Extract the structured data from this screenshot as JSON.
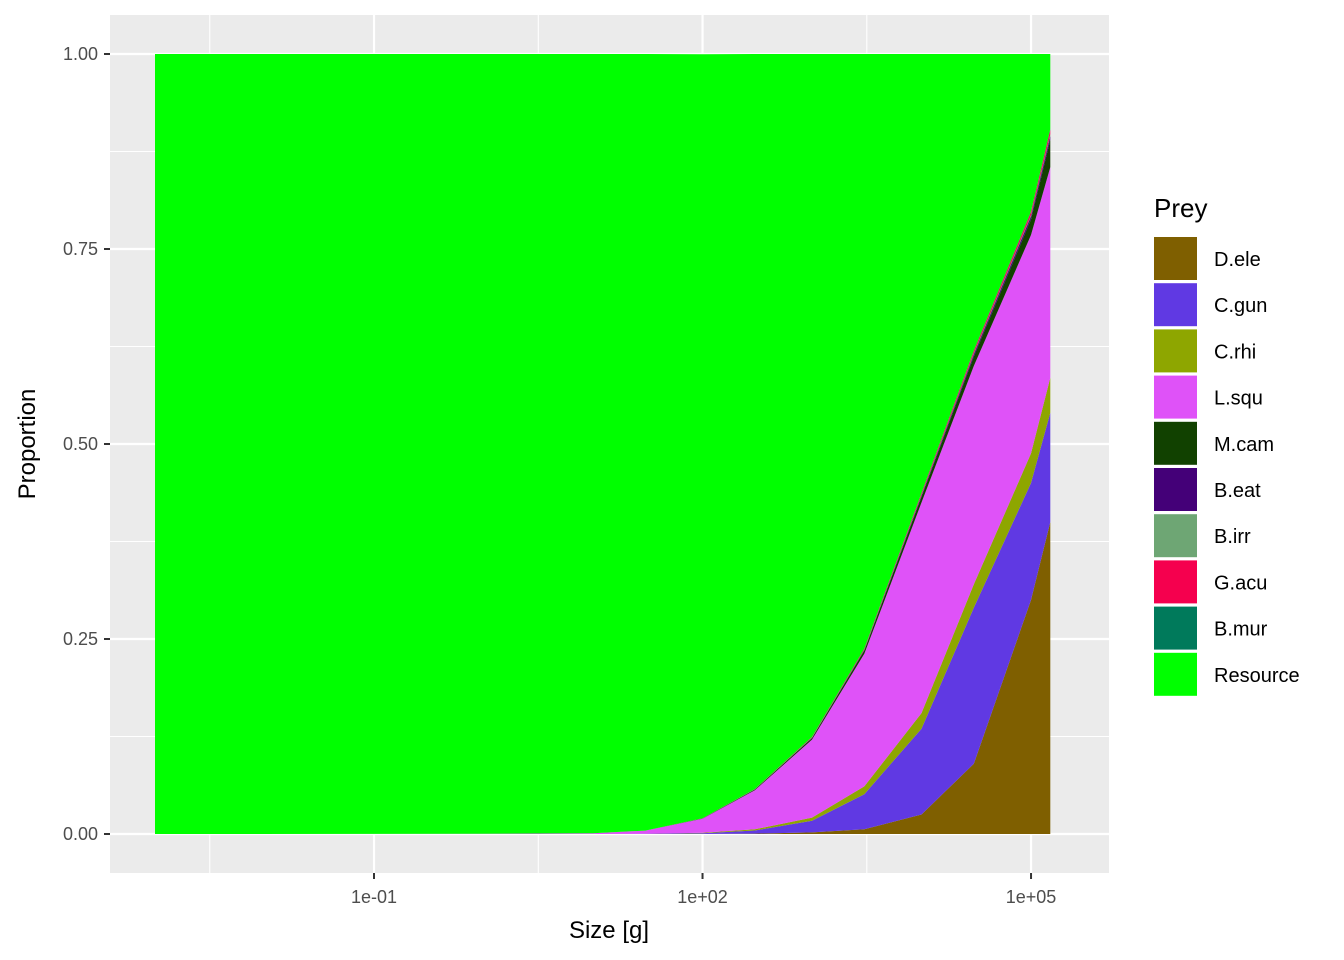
{
  "chart_data": {
    "type": "area",
    "stacked": true,
    "xlabel": "Size [g]",
    "ylabel": "Proportion",
    "x_scale": "log10",
    "xlim": [
      0.001,
      200000
    ],
    "ylim": [
      0,
      1
    ],
    "x_ticks": [
      {
        "value": 0.1,
        "label": "1e-01"
      },
      {
        "value": 100,
        "label": "1e+02"
      },
      {
        "value": 100000,
        "label": "1e+05"
      }
    ],
    "y_ticks": [
      {
        "value": 0,
        "label": "0.00"
      },
      {
        "value": 0.25,
        "label": "0.25"
      },
      {
        "value": 0.5,
        "label": "0.50"
      },
      {
        "value": 0.75,
        "label": "0.75"
      },
      {
        "value": 1,
        "label": "1.00"
      }
    ],
    "grid": true,
    "legend": {
      "title": "Prey",
      "position": "right"
    },
    "x": [
      0.001,
      1,
      10,
      30,
      100,
      300,
      1000,
      3000,
      10000,
      30000,
      100000,
      150000
    ],
    "series": [
      {
        "name": "D.ele",
        "color": "#7f5f00",
        "values": [
          0,
          0,
          0,
          0,
          0,
          0.0005,
          0.002,
          0.006,
          0.025,
          0.09,
          0.3,
          0.4
        ]
      },
      {
        "name": "C.gun",
        "color": "#6039e3",
        "values": [
          0,
          0,
          0,
          0.0002,
          0.001,
          0.004,
          0.015,
          0.045,
          0.11,
          0.2,
          0.15,
          0.14
        ]
      },
      {
        "name": "C.rhi",
        "color": "#8ea600",
        "values": [
          0,
          0,
          0,
          0.0001,
          0.0005,
          0.0015,
          0.004,
          0.01,
          0.02,
          0.03,
          0.038,
          0.045
        ]
      },
      {
        "name": "L.squ",
        "color": "#df52f8",
        "values": [
          0,
          0.0002,
          0.001,
          0.004,
          0.018,
          0.05,
          0.1,
          0.17,
          0.27,
          0.28,
          0.28,
          0.27
        ]
      },
      {
        "name": "M.cam",
        "color": "#114100",
        "values": [
          0,
          0,
          0,
          0.0001,
          0.0004,
          0.001,
          0.002,
          0.004,
          0.007,
          0.012,
          0.02,
          0.035
        ]
      },
      {
        "name": "B.eat",
        "color": "#440078",
        "values": [
          0,
          0,
          0,
          0,
          0.0001,
          0.0002,
          0.0005,
          0.001,
          0.002,
          0.003,
          0.004,
          0.005
        ]
      },
      {
        "name": "B.irr",
        "color": "#6ea674",
        "values": [
          0,
          0,
          0,
          0,
          0,
          0.0001,
          0.0002,
          0.0004,
          0.0008,
          0.0012,
          0.0015,
          0.002
        ]
      },
      {
        "name": "G.acu",
        "color": "#f5004e",
        "values": [
          0,
          0,
          0,
          0,
          0.0001,
          0.0003,
          0.0006,
          0.001,
          0.002,
          0.003,
          0.004,
          0.006
        ]
      },
      {
        "name": "B.mur",
        "color": "#007a5b",
        "values": [
          0,
          0,
          0,
          0,
          0,
          0.0001,
          0.0002,
          0.0003,
          0.0005,
          0.0008,
          0.001,
          0.001
        ]
      },
      {
        "name": "Resource",
        "color": "#00ff00",
        "values": [
          1,
          0.9998,
          0.999,
          0.9956,
          0.9795,
          0.9423,
          0.8755,
          0.7623,
          0.5627,
          0.38,
          0.2015,
          0.096
        ]
      }
    ]
  },
  "colors": {
    "panel_background": "#ebebeb",
    "grid_line": "#ffffff",
    "tick_mark": "#333333"
  }
}
